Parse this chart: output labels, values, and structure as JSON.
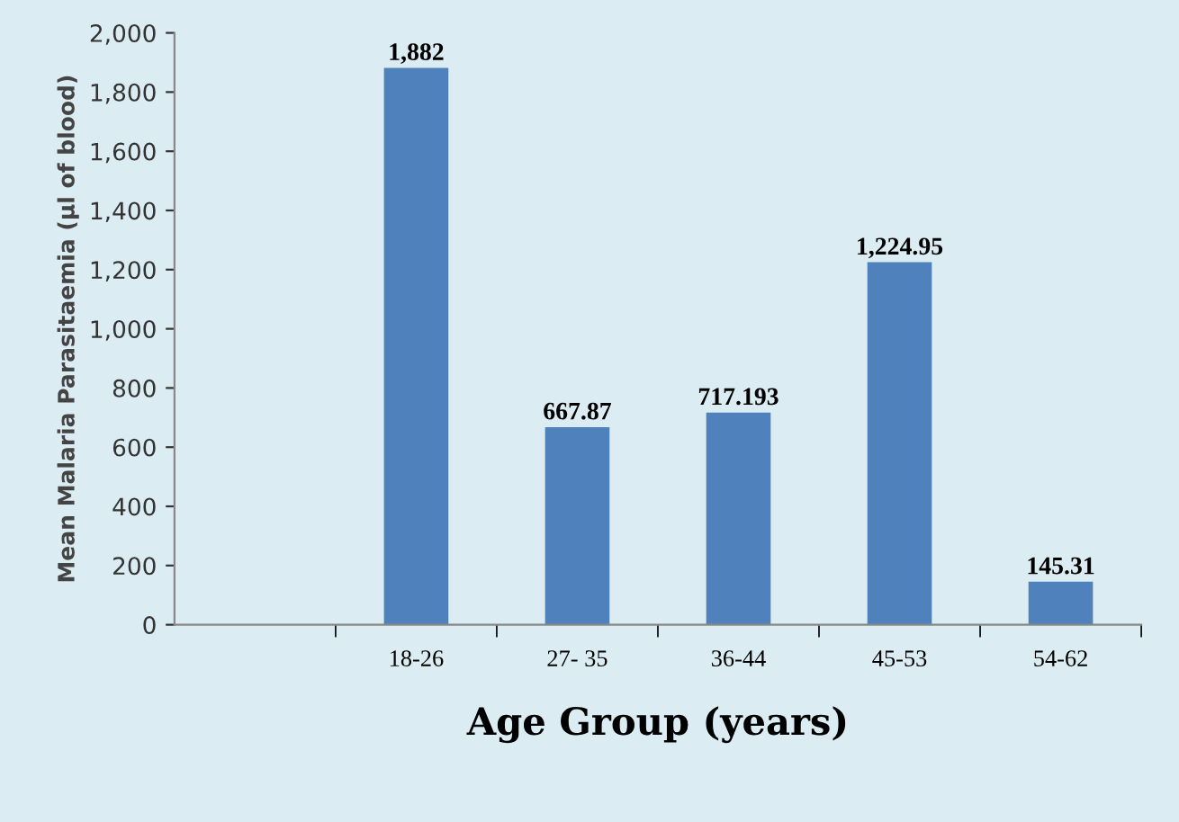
{
  "chart_data": {
    "type": "bar",
    "xlabel": "Age Group (years)",
    "ylabel": "Mean Malaria Parasitaemia (µl of blood)",
    "categories": [
      null,
      "18-26",
      "27- 35",
      "36-44",
      "45-53",
      "54-62"
    ],
    "values": [
      null,
      1882,
      667.87,
      717.193,
      1224.95,
      145.31
    ],
    "value_labels": [
      null,
      "1,882",
      "667.87",
      "717.193",
      "1,224.95",
      "145.31"
    ],
    "color": "#4f81bd",
    "ylim": [
      0,
      2000
    ],
    "yticks": [
      0,
      200,
      400,
      600,
      800,
      {
        "value": 1000,
        "label": "1,000"
      },
      {
        "value": 1200,
        "label": "1,200"
      },
      {
        "value": 1400,
        "label": "1,400"
      },
      {
        "value": 1600,
        "label": "1,600"
      },
      {
        "value": 1800,
        "label": "1,800"
      },
      {
        "value": 2000,
        "label": "2,000"
      }
    ],
    "grid": false,
    "legend": false
  }
}
